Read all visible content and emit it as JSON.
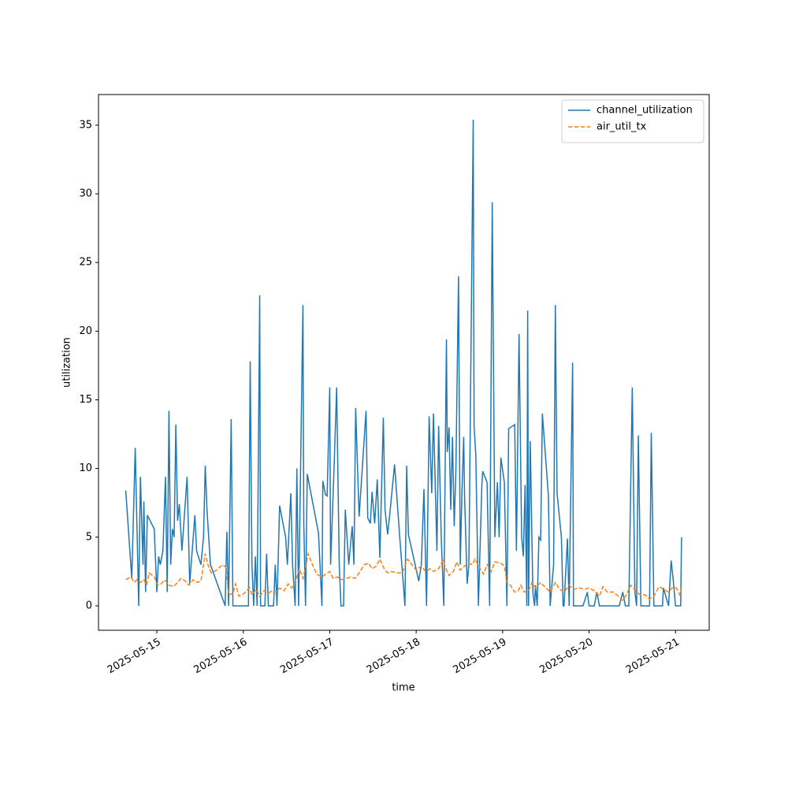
{
  "chart_data": {
    "type": "line",
    "xlabel": "time",
    "ylabel": "utilization",
    "xlim": [
      14.325,
      21.39
    ],
    "xticks": [
      {
        "value": 15,
        "label": "2025-05-15"
      },
      {
        "value": 16,
        "label": "2025-05-16"
      },
      {
        "value": 17,
        "label": "2025-05-17"
      },
      {
        "value": 18,
        "label": "2025-05-18"
      },
      {
        "value": 19,
        "label": "2025-05-19"
      },
      {
        "value": 20,
        "label": "2025-05-20"
      },
      {
        "value": 21,
        "label": "2025-05-21"
      }
    ],
    "ylim": [
      -1.78,
      37.23
    ],
    "yticks": [
      0,
      5,
      10,
      15,
      20,
      25,
      30,
      35
    ],
    "legend": "upper right",
    "series": [
      {
        "name": "channel_utilization",
        "color": "#1f77b4",
        "linestyle": "solid",
        "x": [
          14.64,
          14.71,
          14.75,
          14.79,
          14.81,
          14.84,
          14.85,
          14.87,
          14.89,
          14.97,
          15.0,
          15.02,
          15.04,
          15.07,
          15.1,
          15.12,
          15.14,
          15.16,
          15.18,
          15.2,
          15.22,
          15.24,
          15.26,
          15.29,
          15.35,
          15.38,
          15.44,
          15.46,
          15.51,
          15.54,
          15.56,
          15.58,
          15.62,
          15.79,
          15.81,
          15.83,
          15.86,
          15.88,
          15.92,
          16.06,
          16.08,
          16.1,
          16.12,
          16.14,
          16.16,
          16.19,
          16.2,
          16.25,
          16.27,
          16.29,
          16.35,
          16.37,
          16.39,
          16.42,
          16.49,
          16.51,
          16.55,
          16.57,
          16.6,
          16.62,
          16.64,
          16.69,
          16.7,
          16.72,
          16.74,
          16.87,
          16.91,
          16.92,
          16.95,
          16.97,
          17.0,
          17.01,
          17.05,
          17.08,
          17.11,
          17.13,
          17.16,
          17.18,
          17.22,
          17.26,
          17.28,
          17.3,
          17.34,
          17.42,
          17.44,
          17.47,
          17.49,
          17.52,
          17.55,
          17.58,
          17.62,
          17.64,
          17.67,
          17.7,
          17.75,
          17.81,
          17.87,
          17.89,
          17.91,
          18.03,
          18.06,
          18.09,
          18.12,
          18.15,
          18.18,
          18.2,
          18.24,
          18.26,
          18.29,
          18.32,
          18.35,
          18.36,
          18.38,
          18.4,
          18.42,
          18.44,
          18.46,
          18.49,
          18.51,
          18.53,
          18.55,
          18.56,
          18.59,
          18.61,
          18.66,
          18.67,
          18.69,
          18.72,
          18.76,
          18.77,
          18.82,
          18.85,
          18.88,
          18.91,
          18.94,
          18.96,
          18.98,
          19.02,
          19.05,
          19.07,
          19.14,
          19.16,
          19.19,
          19.22,
          19.24,
          19.26,
          19.28,
          19.29,
          19.3,
          19.32,
          19.35,
          19.37,
          19.38,
          19.4,
          19.42,
          19.44,
          19.46,
          19.53,
          19.55,
          19.59,
          19.61,
          19.63,
          19.68,
          19.7,
          19.71,
          19.75,
          19.77,
          19.81,
          19.82,
          19.93,
          19.98,
          20.0,
          20.06,
          20.09,
          20.12,
          20.35,
          20.39,
          20.42,
          20.46,
          20.5,
          20.53,
          20.55,
          20.57,
          20.6,
          20.7,
          20.72,
          20.75,
          20.85,
          20.86,
          20.92,
          20.95,
          20.98,
          21.0,
          21.06,
          21.07
        ],
        "values": [
          8.4,
          2,
          11.5,
          0,
          9.4,
          3,
          7.6,
          1,
          6.6,
          5.6,
          1,
          3.6,
          3,
          4,
          9.4,
          1,
          14.2,
          3,
          5.6,
          5,
          13.2,
          6.2,
          7.4,
          4,
          9.4,
          1.6,
          6.6,
          4,
          3,
          5,
          10.2,
          7,
          3,
          0,
          5.4,
          0,
          13.6,
          0,
          0,
          0,
          17.8,
          3,
          0,
          3.6,
          0,
          22.6,
          0,
          0,
          3.8,
          0,
          0,
          3,
          0,
          7.3,
          5,
          3,
          8.2,
          3,
          0,
          10,
          0,
          21.9,
          6,
          0,
          9.6,
          5.3,
          0,
          9.1,
          8.1,
          8,
          15.9,
          3,
          10,
          15.9,
          3,
          0,
          0,
          7,
          3,
          5.8,
          3,
          14.4,
          6.5,
          14.2,
          6.4,
          6,
          8.3,
          6,
          9.2,
          3.5,
          13.7,
          7,
          5.2,
          7,
          10.3,
          5,
          0,
          10.2,
          5.2,
          1.8,
          3,
          8.5,
          0,
          13.8,
          8.2,
          14,
          4,
          13.1,
          5,
          0,
          19.4,
          11.2,
          13,
          7,
          12.3,
          5.8,
          10,
          24,
          3,
          8.4,
          12.3,
          8,
          1.6,
          3,
          35.4,
          13.1,
          11,
          0,
          8.8,
          9.8,
          9,
          0,
          29.4,
          5,
          9,
          5,
          10.8,
          9,
          0,
          12.9,
          13.2,
          4,
          19.8,
          5,
          3.6,
          8.8,
          0,
          21.5,
          0,
          12,
          1,
          0,
          1.5,
          0,
          5,
          4.8,
          14,
          8,
          0,
          3,
          21.9,
          8.2,
          5,
          0,
          0,
          4.9,
          0,
          17.7,
          0,
          0,
          1,
          0,
          0,
          1,
          0,
          0,
          1,
          0,
          0,
          15.9,
          1,
          0,
          12.4,
          0,
          0,
          12.6,
          0,
          0,
          1.3,
          0,
          3.3,
          1.5,
          0,
          0,
          5
        ]
      },
      {
        "name": "air_util_tx",
        "color": "#ff7f0e",
        "linestyle": "dashed",
        "x": [
          14.64,
          14.7,
          14.74,
          14.77,
          14.81,
          14.85,
          14.88,
          14.91,
          14.97,
          15.01,
          15.05,
          15.09,
          15.14,
          15.19,
          15.24,
          15.28,
          15.33,
          15.37,
          15.42,
          15.47,
          15.51,
          15.56,
          15.59,
          15.63,
          15.69,
          15.76,
          15.8,
          15.83,
          15.88,
          15.91,
          15.95,
          16.01,
          16.07,
          16.1,
          16.15,
          16.19,
          16.24,
          16.29,
          16.33,
          16.38,
          16.42,
          16.47,
          16.52,
          16.56,
          16.61,
          16.65,
          16.69,
          16.72,
          16.75,
          16.8,
          16.85,
          16.91,
          16.95,
          17.0,
          17.04,
          17.09,
          17.14,
          17.2,
          17.24,
          17.29,
          17.34,
          17.4,
          17.45,
          17.49,
          17.54,
          17.58,
          17.63,
          17.67,
          17.72,
          17.77,
          17.84,
          17.9,
          17.95,
          18.0,
          18.06,
          18.11,
          18.16,
          18.2,
          18.26,
          18.31,
          18.35,
          18.38,
          18.43,
          18.47,
          18.51,
          18.56,
          18.6,
          18.65,
          18.68,
          18.73,
          18.78,
          18.82,
          18.87,
          18.91,
          18.98,
          19.02,
          19.05,
          19.09,
          19.14,
          19.18,
          19.21,
          19.25,
          19.3,
          19.34,
          19.38,
          19.44,
          19.5,
          19.55,
          19.61,
          19.66,
          19.71,
          19.77,
          19.82,
          19.89,
          19.95,
          20.0,
          20.06,
          20.12,
          20.16,
          20.21,
          20.28,
          20.34,
          20.39,
          20.44,
          20.48,
          20.54,
          20.59,
          20.65,
          20.7,
          20.75,
          20.81,
          20.86,
          20.92,
          20.96,
          21.01,
          21.05,
          21.07
        ],
        "values": [
          1.9,
          2.1,
          1.7,
          1.9,
          1.7,
          1.9,
          1.5,
          2.4,
          2.1,
          1.5,
          1.6,
          1.9,
          1.5,
          1.4,
          1.7,
          2,
          1.8,
          1.5,
          1.9,
          1.7,
          1.8,
          3.8,
          3,
          2.4,
          2.6,
          3,
          2.8,
          0.8,
          0.9,
          1.6,
          0.7,
          0.9,
          1.3,
          0.8,
          1.2,
          0.7,
          1.1,
          0.9,
          1.1,
          1,
          1.3,
          1.1,
          1.6,
          1.3,
          1.9,
          2.7,
          2,
          2.8,
          3.8,
          3,
          2.3,
          2.1,
          2.3,
          2.5,
          2,
          2.1,
          1.9,
          2,
          2.1,
          2,
          2.4,
          3,
          3.1,
          2.7,
          2.9,
          3.4,
          2.7,
          2.4,
          2.5,
          2.4,
          2.4,
          3.4,
          3,
          2.6,
          2.9,
          2.5,
          2.7,
          2.5,
          2.7,
          3.3,
          2.6,
          2.2,
          2.5,
          3.2,
          2.6,
          2.9,
          3.1,
          3,
          3.4,
          2.8,
          2.3,
          3,
          2.5,
          3.2,
          3.1,
          2.9,
          1.7,
          1.5,
          1,
          1.1,
          1.5,
          1,
          1.1,
          1.7,
          1.3,
          1.7,
          1.3,
          1,
          1.7,
          1.2,
          1,
          1.5,
          1.2,
          1.3,
          1.2,
          1.3,
          1.1,
          0.7,
          1.4,
          1,
          1,
          0.7,
          0.4,
          0.9,
          1.5,
          1.1,
          0.8,
          0.8,
          0.5,
          0.7,
          1.4,
          1.2,
          1,
          1.3,
          1.3,
          0.8,
          1.3
        ]
      }
    ]
  }
}
